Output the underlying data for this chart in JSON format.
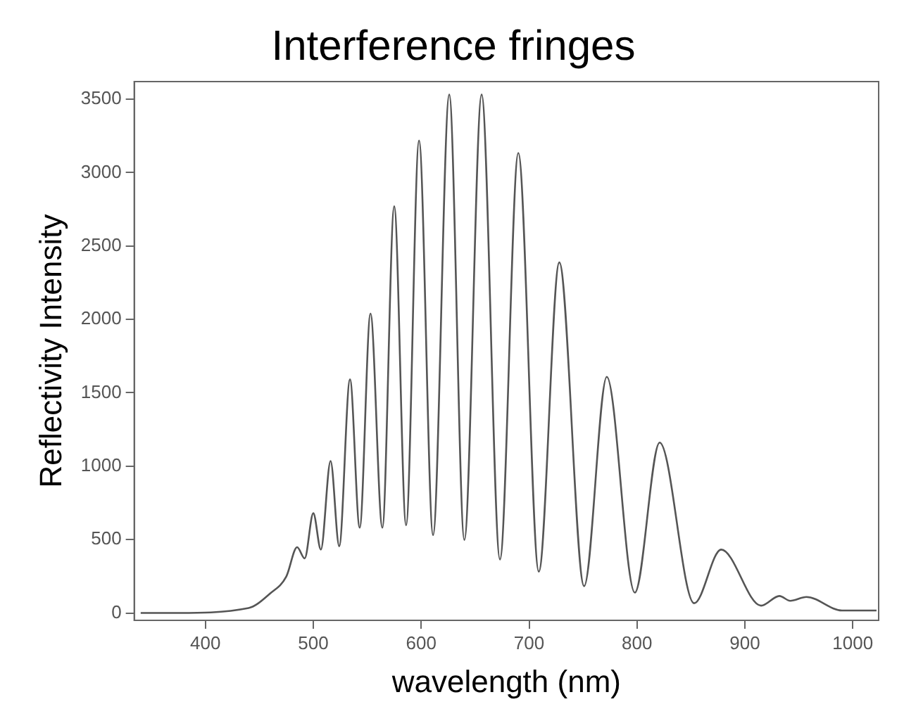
{
  "chart_data": {
    "type": "line",
    "title": "Interference fringes",
    "xlabel": "wavelength (nm)",
    "ylabel": "Reflectivity Intensity",
    "x": [
      340,
      370,
      440,
      460,
      475,
      485,
      492,
      500,
      507,
      516,
      524,
      534,
      543,
      553,
      564,
      575,
      586,
      598,
      611,
      626,
      640,
      656,
      673,
      690,
      709,
      728,
      751,
      772,
      798,
      821,
      853,
      878,
      915,
      932,
      942,
      957,
      990,
      1022
    ],
    "series": [
      {
        "color": "#555555",
        "values": [
          0,
          0,
          34,
          133,
          249,
          448,
          372,
          680,
          432,
          1035,
          455,
          1592,
          581,
          2040,
          581,
          2770,
          598,
          3218,
          531,
          3532,
          498,
          3532,
          365,
          3134,
          282,
          2388,
          183,
          1609,
          139,
          1161,
          67,
          432,
          50,
          116,
          83,
          109,
          17,
          17
        ]
      }
    ],
    "xlim": [
      334,
      1024
    ],
    "xticks": [
      400,
      500,
      600,
      700,
      800,
      900,
      1000
    ],
    "ylim": [
      -50,
      3620
    ],
    "yticks": [
      0,
      500,
      1000,
      1500,
      2000,
      2500,
      3000,
      3500
    ],
    "grid": false,
    "legend": false,
    "marker": "none",
    "line_style": "solid"
  }
}
